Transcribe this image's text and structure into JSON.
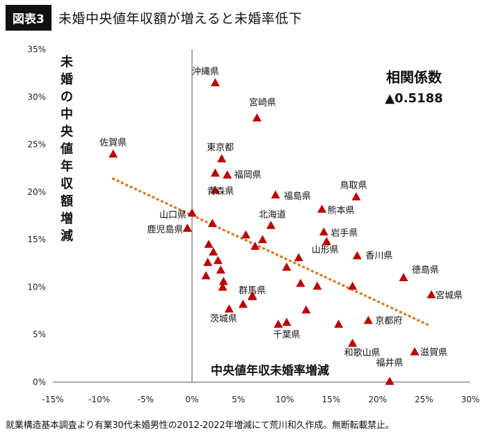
{
  "header": {
    "badge": "図表3",
    "title": "未婚中央値年収額が増えると未婚率低下"
  },
  "footer": {
    "note": "就業構造基本調査より有業30代未婚男性の2012-2022年増減にて荒川和久作成。無断転載禁止。"
  },
  "correlation": {
    "label": "相関係数",
    "value": "▲0.5188"
  },
  "chart_data": {
    "type": "scatter",
    "xlabel": "中央値年収未婚率増減",
    "ylabel": "未婚の中央値年収額増減",
    "xlim": [
      -15,
      30
    ],
    "ylim": [
      0,
      35
    ],
    "xticks": [
      "-15%",
      "-10%",
      "-5%",
      "0%",
      "5%",
      "10%",
      "15%",
      "20%",
      "25%",
      "30%"
    ],
    "yticks": [
      "0%",
      "5%",
      "10%",
      "15%",
      "20%",
      "25%",
      "30%",
      "35%"
    ],
    "x_unit": "%",
    "y_unit": "%",
    "marker_color": "#c00000",
    "trendline": {
      "style": "dotted",
      "color": "#e07b1a",
      "from": [
        -8.5,
        21.4
      ],
      "to": [
        25.5,
        6.0
      ]
    },
    "labeled_points": [
      {
        "name": "沖縄県",
        "x": 2.5,
        "y": 31.5
      },
      {
        "name": "宮崎県",
        "x": 7.0,
        "y": 27.8
      },
      {
        "name": "佐賀県",
        "x": -8.5,
        "y": 24.0
      },
      {
        "name": "東京都",
        "x": 3.2,
        "y": 23.5
      },
      {
        "name": "福岡県",
        "x": 3.8,
        "y": 21.8
      },
      {
        "name": "青森県",
        "x": 2.5,
        "y": 20.2
      },
      {
        "name": "福島県",
        "x": 9.0,
        "y": 19.7
      },
      {
        "name": "鳥取県",
        "x": 17.7,
        "y": 19.5
      },
      {
        "name": "山口県",
        "x": 0.0,
        "y": 17.8
      },
      {
        "name": "熊本県",
        "x": 14.0,
        "y": 18.2
      },
      {
        "name": "北海道",
        "x": 8.5,
        "y": 16.5
      },
      {
        "name": "鹿児島県",
        "x": -0.5,
        "y": 16.2
      },
      {
        "name": "岩手県",
        "x": 14.2,
        "y": 15.8
      },
      {
        "name": "山形県",
        "x": 14.5,
        "y": 14.8
      },
      {
        "name": "香川県",
        "x": 17.8,
        "y": 13.3
      },
      {
        "name": "徳島県",
        "x": 22.8,
        "y": 11.0
      },
      {
        "name": "宮城県",
        "x": 25.8,
        "y": 9.2
      },
      {
        "name": "群馬県",
        "x": 6.5,
        "y": 9.1
      },
      {
        "name": "茨城県",
        "x": 4.0,
        "y": 7.7
      },
      {
        "name": "京都府",
        "x": 19.0,
        "y": 6.5
      },
      {
        "name": "千葉県",
        "x": 10.2,
        "y": 6.3
      },
      {
        "name": "和歌山県",
        "x": 17.3,
        "y": 4.1
      },
      {
        "name": "滋賀県",
        "x": 24.0,
        "y": 3.2
      },
      {
        "name": "福井県",
        "x": 21.3,
        "y": 0.1
      }
    ],
    "other_points": [
      {
        "x": 2.5,
        "y": 22.0
      },
      {
        "x": 2.2,
        "y": 16.7
      },
      {
        "x": 5.8,
        "y": 15.5
      },
      {
        "x": 6.8,
        "y": 14.3
      },
      {
        "x": 7.6,
        "y": 15.0
      },
      {
        "x": 1.8,
        "y": 14.5
      },
      {
        "x": 2.3,
        "y": 13.7
      },
      {
        "x": 2.8,
        "y": 12.8
      },
      {
        "x": 1.7,
        "y": 12.6
      },
      {
        "x": 3.1,
        "y": 11.8
      },
      {
        "x": 1.5,
        "y": 11.2
      },
      {
        "x": 3.4,
        "y": 10.6
      },
      {
        "x": 3.3,
        "y": 10.0
      },
      {
        "x": 6.5,
        "y": 9.0
      },
      {
        "x": 5.5,
        "y": 8.2
      },
      {
        "x": 11.5,
        "y": 13.1
      },
      {
        "x": 10.2,
        "y": 12.1
      },
      {
        "x": 11.7,
        "y": 10.4
      },
      {
        "x": 13.5,
        "y": 10.1
      },
      {
        "x": 17.3,
        "y": 10.1
      },
      {
        "x": 12.3,
        "y": 7.6
      },
      {
        "x": 9.3,
        "y": 6.1
      },
      {
        "x": 15.8,
        "y": 6.1
      }
    ]
  }
}
